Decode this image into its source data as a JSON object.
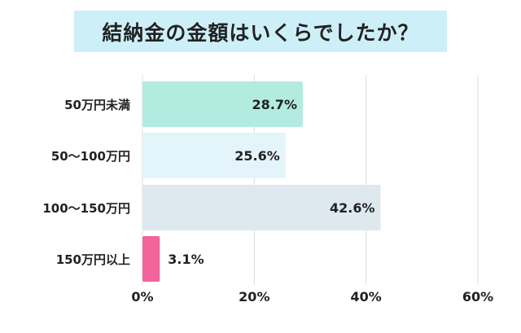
{
  "chart_data": {
    "type": "bar",
    "orientation": "horizontal",
    "title": "結納金の金額はいくらでしたか？",
    "categories": [
      "50万円未満",
      "50〜100万円",
      "100〜150万円",
      "150万円以上"
    ],
    "values": [
      28.7,
      25.6,
      42.6,
      3.1
    ],
    "value_labels": [
      "28.7%",
      "25.6%",
      "42.6%",
      "3.1%"
    ],
    "colors": [
      "#b3ebe1",
      "#e3f4fa",
      "#dde9ef",
      "#f2649b"
    ],
    "xlim": [
      0,
      60
    ],
    "x_ticks": [
      "0%",
      "20%",
      "40%",
      "60%"
    ],
    "grid": true,
    "legend": "none"
  }
}
